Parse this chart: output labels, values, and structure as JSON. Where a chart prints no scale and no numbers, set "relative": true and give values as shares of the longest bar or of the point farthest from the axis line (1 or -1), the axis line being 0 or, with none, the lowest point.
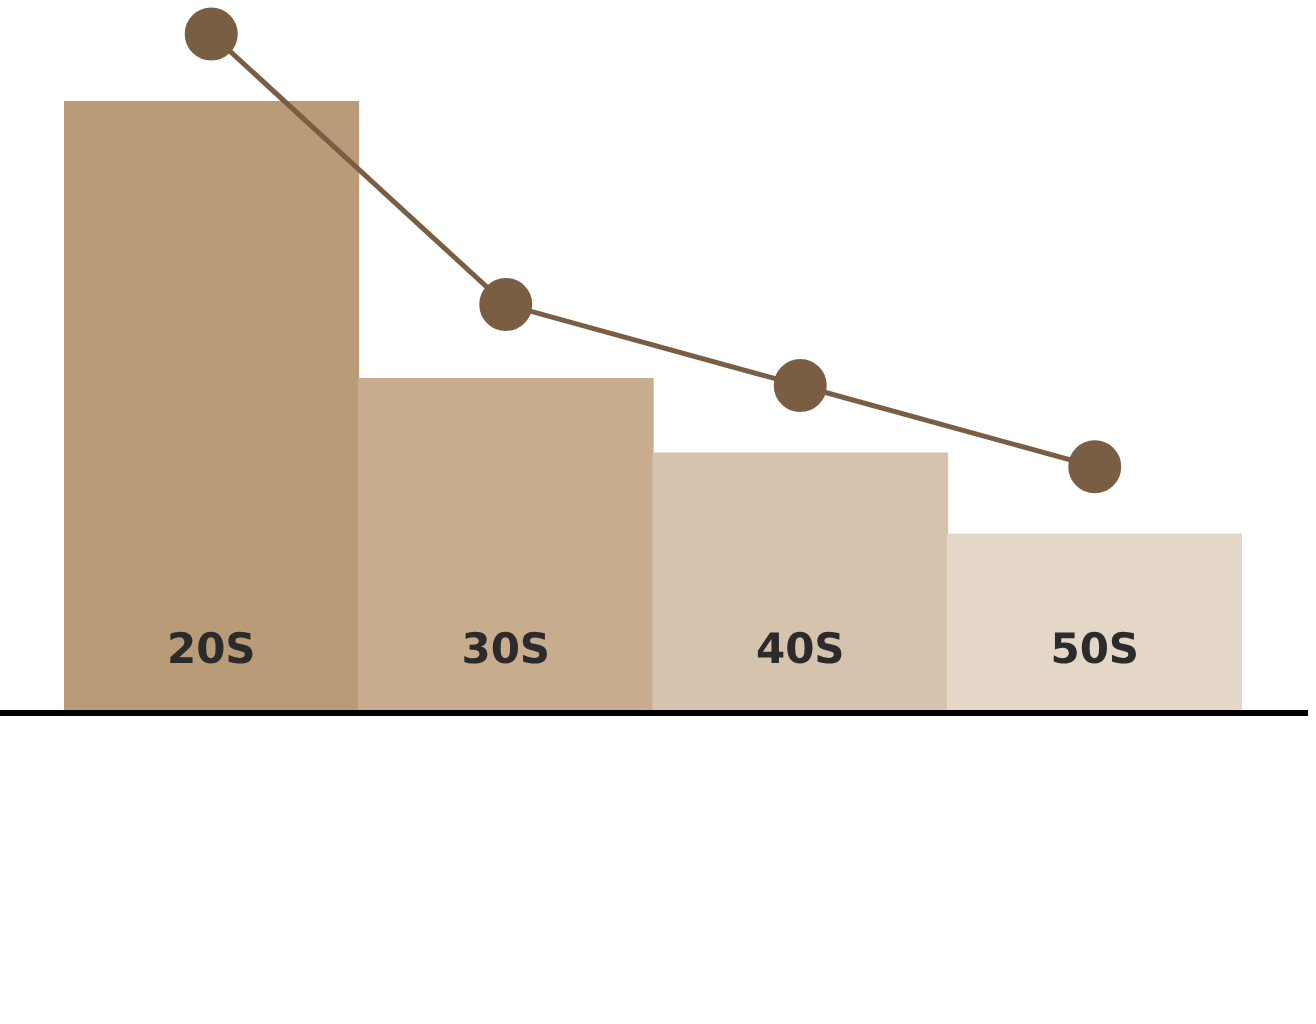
{
  "chart_data": {
    "type": "bar",
    "relative": true,
    "categories": [
      "20S",
      "30S",
      "40S",
      "50S"
    ],
    "legend": false,
    "grid": false,
    "series": [
      {
        "colors": [
          "#ba9b78",
          "#c8ac8e",
          "#d6c3ae",
          "#e4d7c7"
        ],
        "values": [
          0.9,
          0.49,
          0.38,
          0.26
        ]
      },
      {
        "type": "line",
        "color": "#7a5e44",
        "marker": "circle",
        "values": [
          1,
          0.6,
          0.48,
          0.36
        ]
      }
    ]
  }
}
